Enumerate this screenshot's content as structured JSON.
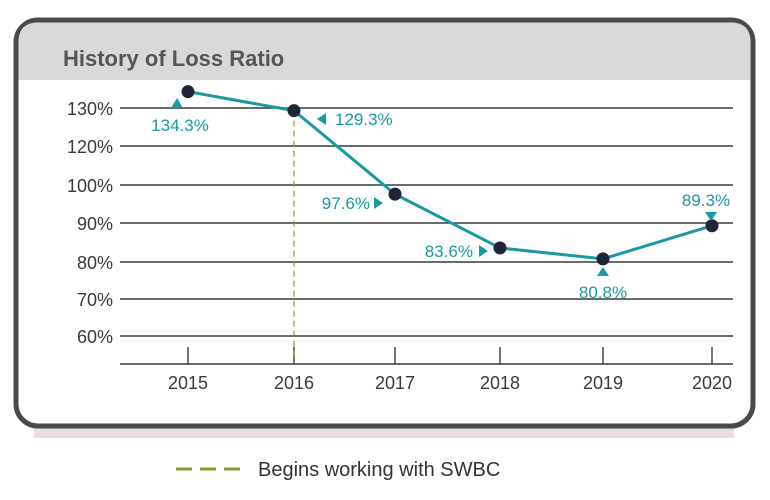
{
  "chart_data": {
    "type": "line",
    "title": "History of Loss Ratio",
    "x": [
      "2015",
      "2016",
      "2017",
      "2018",
      "2019",
      "2020"
    ],
    "series": [
      {
        "values": [
          134.3,
          129.3,
          97.6,
          83.6,
          80.8,
          89.3
        ],
        "labels": [
          "134.3%",
          "129.3%",
          "97.6%",
          "83.6%",
          "80.8%",
          "89.3%"
        ]
      }
    ],
    "y_ticks": [
      "130%",
      "120%",
      "100%",
      "90%",
      "80%",
      "70%",
      "60%"
    ],
    "grid": true,
    "annotation": {
      "type": "vertical-dashed-line",
      "at": "2016",
      "label": "Begins working with SWBC"
    },
    "legend_position": "bottom-center"
  },
  "colors": {
    "line": "#1a9aa0",
    "marker": "#1f2437",
    "annotation": "#8a9a2a",
    "frame": "#4a4a4a",
    "title_band": "#d9d9d9",
    "grid": "#3a3a3a",
    "shadow": "#e6dedd"
  }
}
